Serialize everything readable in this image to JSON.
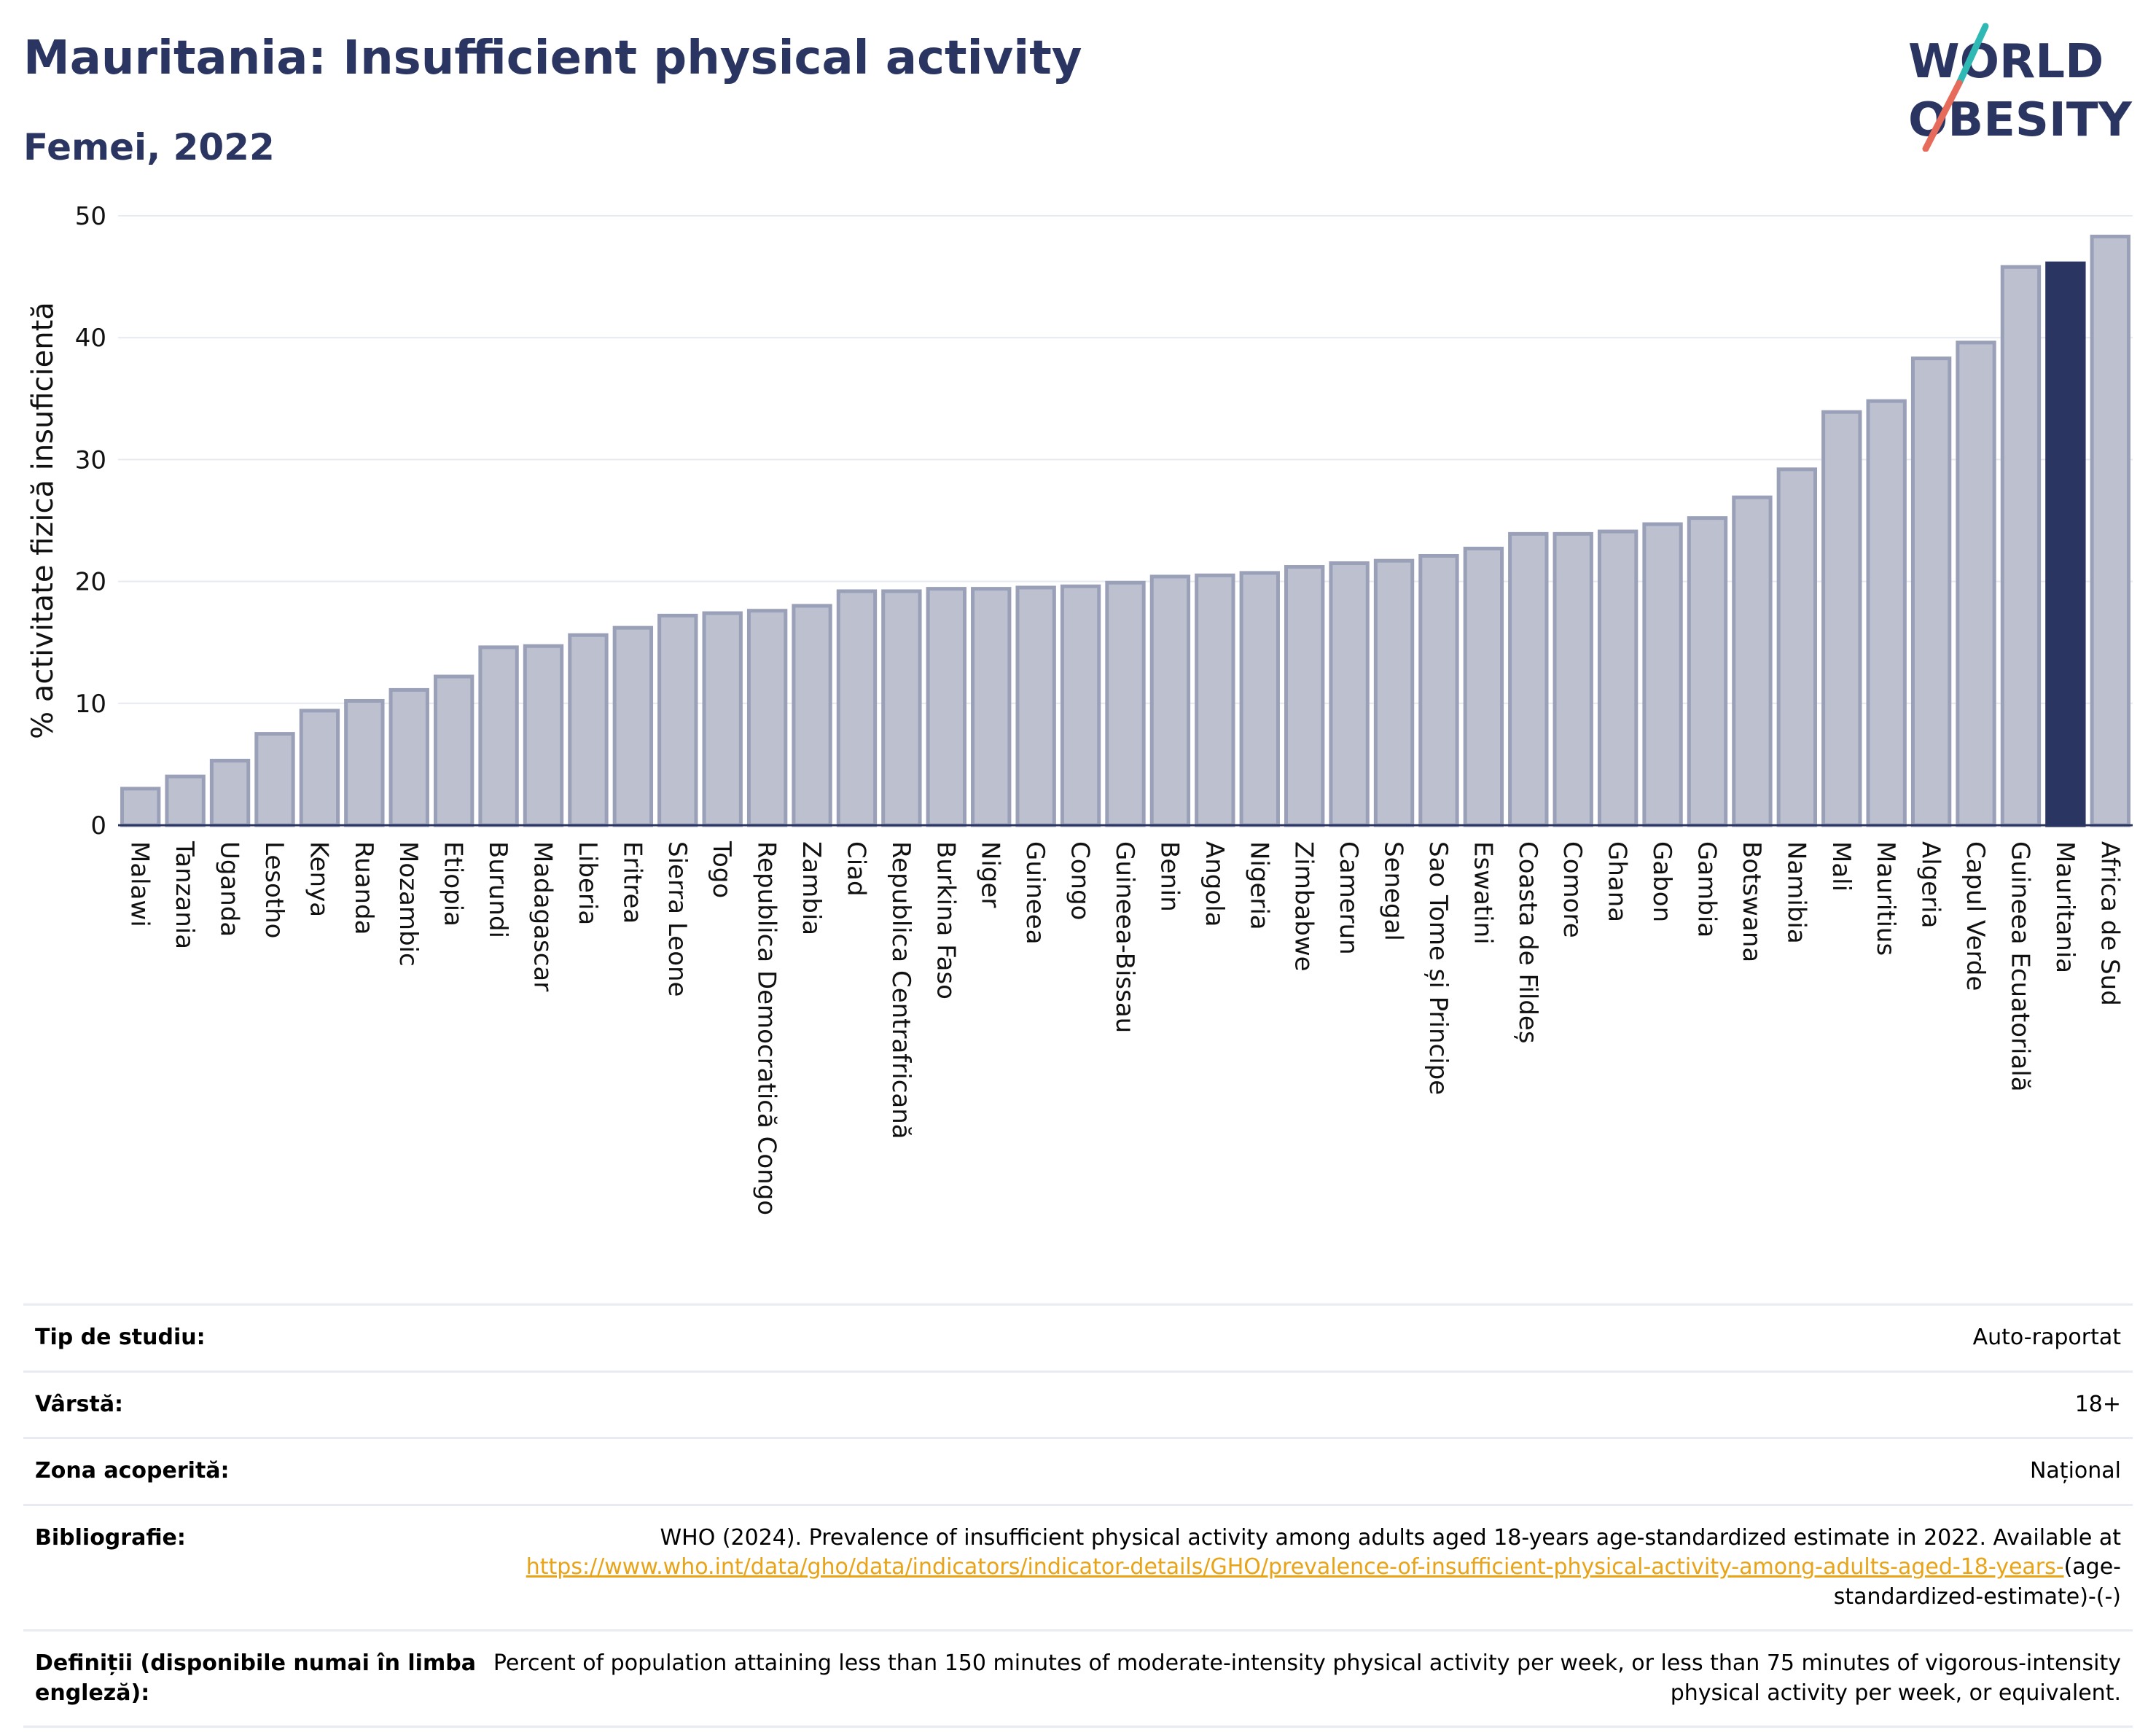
{
  "title": "Mauritania: Insufficient physical activity",
  "subtitle": "Femei, 2022",
  "logo": {
    "line1": "WORLD",
    "line2": "OBESITY",
    "accent_teal": "#2fb9b4",
    "accent_coral": "#e66b5b"
  },
  "colors": {
    "highlight": "#2b3562",
    "bar": "#bcc0cf",
    "bar_stroke": "#9aa0b8",
    "text_dark": "#2b3562"
  },
  "chart_data": {
    "type": "bar",
    "ylabel": "% activitate fizică insuficientă",
    "ylim": [
      0,
      50
    ],
    "yticks": [
      0,
      10,
      20,
      30,
      40,
      50
    ],
    "grid": true,
    "highlight": "Mauritania",
    "categories": [
      "Malawi",
      "Tanzania",
      "Uganda",
      "Lesotho",
      "Kenya",
      "Ruanda",
      "Mozambic",
      "Etiopia",
      "Burundi",
      "Madagascar",
      "Liberia",
      "Eritrea",
      "Sierra Leone",
      "Togo",
      "Republica Democratică Congo",
      "Zambia",
      "Ciad",
      "Republica Centrafricană",
      "Burkina Faso",
      "Niger",
      "Guineea",
      "Congo",
      "Guineea-Bissau",
      "Benin",
      "Angola",
      "Nigeria",
      "Zimbabwe",
      "Camerun",
      "Senegal",
      "Sao Tome și Principe",
      "Eswatini",
      "Coasta de Fildeș",
      "Comore",
      "Ghana",
      "Gabon",
      "Gambia",
      "Botswana",
      "Namibia",
      "Mali",
      "Mauritius",
      "Algeria",
      "Capul Verde",
      "Guineea Ecuatorială",
      "Mauritania",
      "Africa de Sud"
    ],
    "values": [
      3.0,
      4.0,
      5.3,
      7.5,
      9.4,
      10.2,
      11.1,
      12.2,
      14.6,
      14.7,
      15.6,
      16.2,
      17.2,
      17.4,
      17.6,
      18.0,
      19.2,
      19.2,
      19.4,
      19.4,
      19.5,
      19.6,
      19.9,
      20.4,
      20.5,
      20.7,
      21.2,
      21.5,
      21.7,
      22.1,
      22.7,
      23.9,
      23.9,
      24.1,
      24.7,
      25.2,
      26.9,
      29.2,
      33.9,
      34.8,
      38.3,
      39.6,
      45.8,
      46.1,
      48.3
    ]
  },
  "meta": {
    "study_type": {
      "label": "Tip de studiu:",
      "value": "Auto-raportat"
    },
    "age": {
      "label": "Vârstă:",
      "value": "18+"
    },
    "coverage": {
      "label": "Zona acoperită:",
      "value": "Național"
    },
    "bibliography": {
      "label": "Bibliografie:",
      "text": "WHO (2024). Prevalence of insufficient physical activity among adults aged 18-years age-standardized estimate in 2022. Available at",
      "link": "https://www.who.int/data/gho/data/indicators/indicator-details/GHO/prevalence-of-insufficient-physical-activity-among-adults-aged-18-years-",
      "suffix": "(age-standardized-estimate)-(-)"
    },
    "definitions": {
      "label": "Definiții (disponibile numai în limba engleză):",
      "value": "Percent of population attaining less than 150 minutes of moderate-intensity physical activity per week, or less than 75 minutes of vigorous-intensity physical activity per week, or equivalent."
    }
  }
}
